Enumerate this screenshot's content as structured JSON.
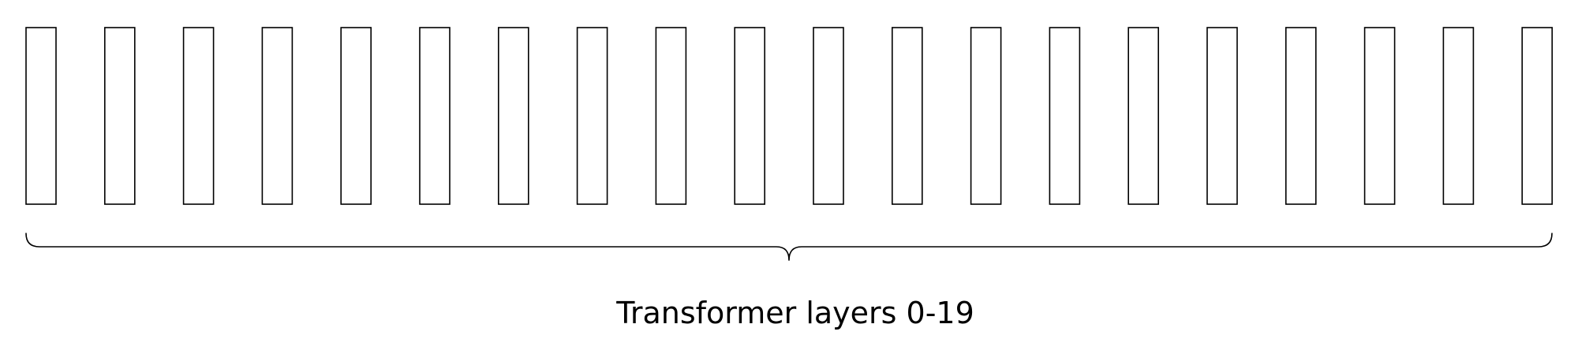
{
  "diagram": {
    "caption": "Transformer layers 0-19",
    "layer_count": 20
  }
}
